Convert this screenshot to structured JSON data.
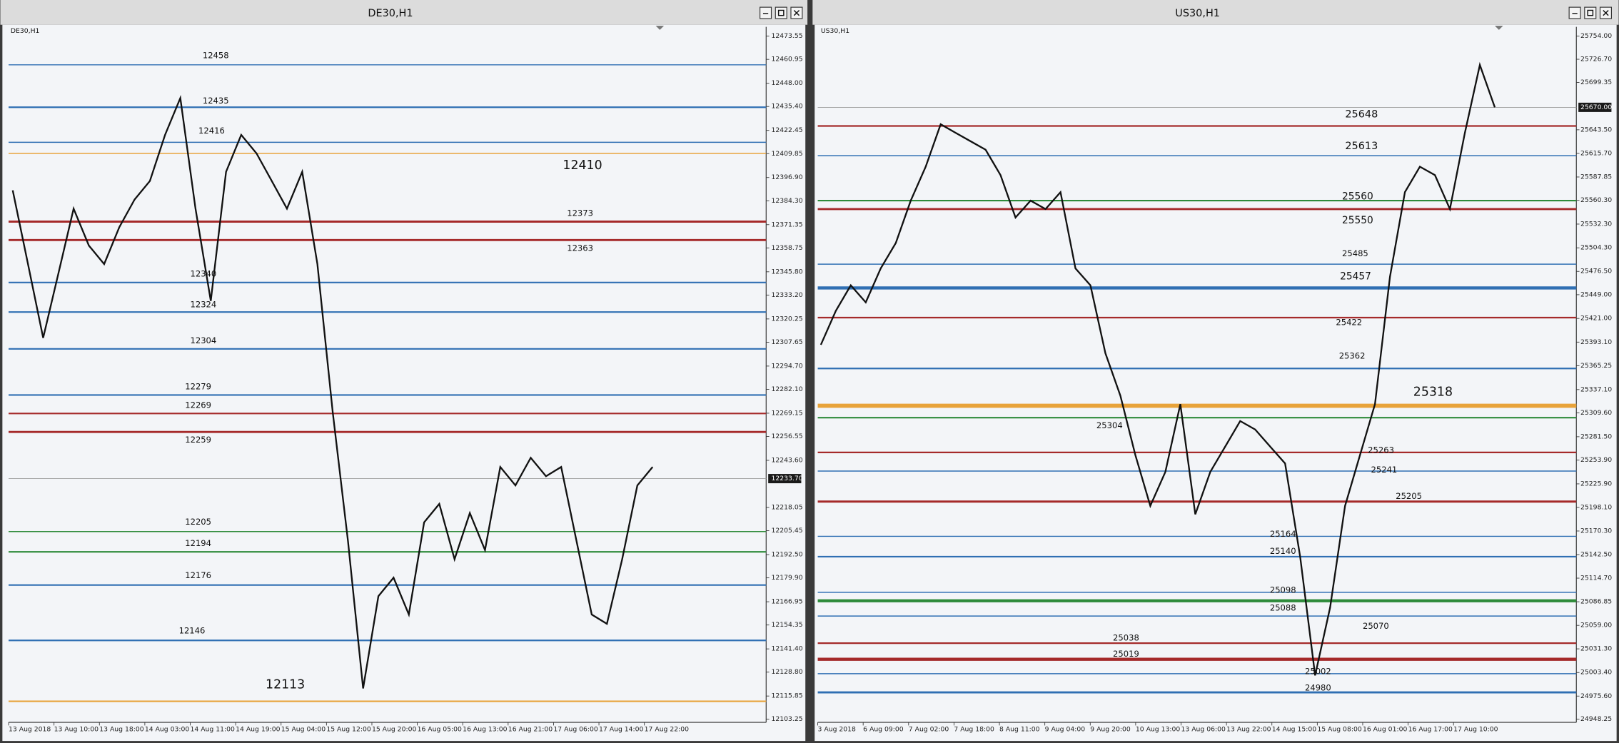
{
  "windows": [
    {
      "title": "DE30,H1",
      "ylim": [
        12103.25,
        12473.55
      ],
      "price_labels": [
        "12473.55",
        "12460.95",
        "12448.00",
        "12435.40",
        "12422.45",
        "12409.85",
        "12396.90",
        "12384.30",
        "12371.35",
        "12358.75",
        "12345.80",
        "12333.20",
        "12320.25",
        "12307.65",
        "12294.70",
        "12282.10",
        "12269.15",
        "12256.55",
        "12243.60",
        "12218.05",
        "12205.45",
        "12192.50",
        "12179.90",
        "12166.95",
        "12154.35",
        "12141.40",
        "12128.80",
        "12115.85",
        "12103.25"
      ],
      "current_price": "12233.70",
      "time_labels": [
        "13 Aug 2018",
        "13 Aug 10:00",
        "13 Aug 18:00",
        "14 Aug 03:00",
        "14 Aug 11:00",
        "14 Aug 19:00",
        "15 Aug 04:00",
        "15 Aug 12:00",
        "15 Aug 20:00",
        "16 Aug 05:00",
        "16 Aug 13:00",
        "16 Aug 21:00",
        "17 Aug 06:00",
        "17 Aug 14:00",
        "17 Aug 22:00"
      ],
      "levels": [
        {
          "price": 12458,
          "color": "#2f6fb3",
          "weight": 1
        },
        {
          "price": 12435,
          "color": "#2f6fb3",
          "weight": 1.5
        },
        {
          "price": 12416,
          "color": "#2f6fb3",
          "weight": 1
        },
        {
          "price": 12410,
          "color": "#e8a33a",
          "weight": 1
        },
        {
          "price": 12373,
          "color": "#a52a2a",
          "weight": 2
        },
        {
          "price": 12363,
          "color": "#a52a2a",
          "weight": 2
        },
        {
          "price": 12340,
          "color": "#2f6fb3",
          "weight": 1.5
        },
        {
          "price": 12324,
          "color": "#2f6fb3",
          "weight": 1.5
        },
        {
          "price": 12304,
          "color": "#2f6fb3",
          "weight": 1.5
        },
        {
          "price": 12279,
          "color": "#2f6fb3",
          "weight": 1.5
        },
        {
          "price": 12269,
          "color": "#a52a2a",
          "weight": 1.5
        },
        {
          "price": 12259,
          "color": "#a52a2a",
          "weight": 2
        },
        {
          "price": 12205,
          "color": "#2e8b3a",
          "weight": 1
        },
        {
          "price": 12194,
          "color": "#2e8b3a",
          "weight": 1.5
        },
        {
          "price": 12176,
          "color": "#2f6fb3",
          "weight": 1.5
        },
        {
          "price": 12146,
          "color": "#2f6fb3",
          "weight": 1.5
        },
        {
          "price": 12113,
          "color": "#e8a33a",
          "weight": 1.5
        }
      ],
      "closes": [
        12390,
        12350,
        12310,
        12345,
        12380,
        12360,
        12350,
        12370,
        12385,
        12395,
        12420,
        12440,
        12380,
        12330,
        12400,
        12420,
        12410,
        12395,
        12380,
        12400,
        12350,
        12270,
        12200,
        12120,
        12170,
        12180,
        12160,
        12210,
        12220,
        12190,
        12215,
        12195,
        12240,
        12230,
        12245,
        12235,
        12240,
        12200,
        12160,
        12155,
        12190,
        12230,
        12240
      ]
    },
    {
      "title": "US30,H1",
      "ylim": [
        24948.25,
        25754.0
      ],
      "price_labels": [
        "25754.00",
        "25726.70",
        "25699.35",
        "25643.50",
        "25615.70",
        "25587.85",
        "25560.30",
        "25532.30",
        "25504.30",
        "25476.50",
        "25449.00",
        "25421.00",
        "25393.10",
        "25365.25",
        "25337.10",
        "25309.60",
        "25281.50",
        "25253.90",
        "25225.90",
        "25198.10",
        "25170.30",
        "25142.50",
        "25114.70",
        "25086.85",
        "25059.00",
        "25031.30",
        "25003.40",
        "24975.60",
        "24948.25"
      ],
      "current_price": "25670.00",
      "time_labels": [
        "3 Aug 2018",
        "6 Aug 09:00",
        "7 Aug 02:00",
        "7 Aug 18:00",
        "8 Aug 11:00",
        "9 Aug 04:00",
        "9 Aug 20:00",
        "10 Aug 13:00",
        "13 Aug 06:00",
        "13 Aug 22:00",
        "14 Aug 15:00",
        "15 Aug 08:00",
        "16 Aug 01:00",
        "16 Aug 17:00",
        "17 Aug 10:00"
      ],
      "levels": [
        {
          "price": 25648,
          "color": "#a52a2a",
          "weight": 1.5
        },
        {
          "price": 25613,
          "color": "#2f6fb3",
          "weight": 1
        },
        {
          "price": 25560,
          "color": "#2e8b3a",
          "weight": 1.5
        },
        {
          "price": 25550,
          "color": "#a52a2a",
          "weight": 2
        },
        {
          "price": 25485,
          "color": "#2f6fb3",
          "weight": 1
        },
        {
          "price": 25457,
          "color": "#2f6fb3",
          "weight": 3
        },
        {
          "price": 25422,
          "color": "#a52a2a",
          "weight": 1.5
        },
        {
          "price": 25362,
          "color": "#2f6fb3",
          "weight": 1.5
        },
        {
          "price": 25318,
          "color": "#e8a33a",
          "weight": 4
        },
        {
          "price": 25304,
          "color": "#2e8b3a",
          "weight": 1.5
        },
        {
          "price": 25263,
          "color": "#a52a2a",
          "weight": 1.5
        },
        {
          "price": 25241,
          "color": "#2f6fb3",
          "weight": 1
        },
        {
          "price": 25205,
          "color": "#a52a2a",
          "weight": 2
        },
        {
          "price": 25164,
          "color": "#2f6fb3",
          "weight": 1
        },
        {
          "price": 25140,
          "color": "#2f6fb3",
          "weight": 1.5
        },
        {
          "price": 25098,
          "color": "#2f6fb3",
          "weight": 1
        },
        {
          "price": 25088,
          "color": "#2e8b3a",
          "weight": 3
        },
        {
          "price": 25070,
          "color": "#2f6fb3",
          "weight": 1
        },
        {
          "price": 25038,
          "color": "#a52a2a",
          "weight": 1.5
        },
        {
          "price": 25019,
          "color": "#a52a2a",
          "weight": 3
        },
        {
          "price": 25002,
          "color": "#2f6fb3",
          "weight": 1
        },
        {
          "price": 24980,
          "color": "#2f6fb3",
          "weight": 2
        }
      ],
      "closes": [
        25390,
        25430,
        25460,
        25440,
        25480,
        25510,
        25560,
        25600,
        25650,
        25640,
        25630,
        25620,
        25590,
        25540,
        25560,
        25550,
        25570,
        25480,
        25460,
        25380,
        25330,
        25260,
        25200,
        25240,
        25320,
        25190,
        25240,
        25270,
        25300,
        25290,
        25270,
        25250,
        25140,
        25000,
        25080,
        25200,
        25260,
        25320,
        25470,
        25570,
        25600,
        25590,
        25550,
        25640,
        25720,
        25670
      ]
    }
  ]
}
